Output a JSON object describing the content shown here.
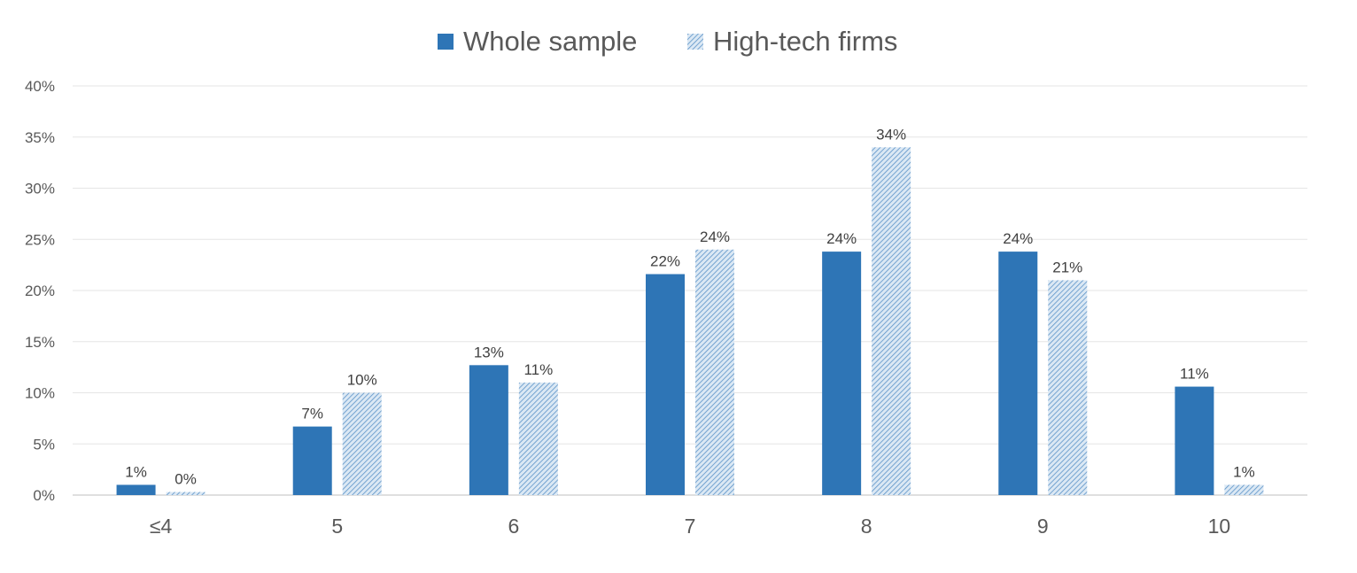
{
  "chart_data": {
    "type": "bar",
    "categories": [
      "≤4",
      "5",
      "6",
      "7",
      "8",
      "9",
      "10"
    ],
    "series": [
      {
        "name": "Whole sample",
        "values": [
          1.0,
          6.7,
          12.7,
          21.6,
          23.8,
          23.8,
          10.6
        ],
        "labels": [
          "1%",
          "7%",
          "13%",
          "22%",
          "24%",
          "24%",
          "11%"
        ],
        "color": "#2E75B6",
        "fill": "solid"
      },
      {
        "name": "High-tech firms",
        "values": [
          0.3,
          10.0,
          11.0,
          24.0,
          34.0,
          21.0,
          1.0
        ],
        "labels": [
          "0%",
          "10%",
          "11%",
          "24%",
          "34%",
          "21%",
          "1%"
        ],
        "color": "#2E75B6",
        "fill": "hatched"
      }
    ],
    "ylim": [
      0,
      40
    ],
    "yticks": [
      0,
      5,
      10,
      15,
      20,
      25,
      30,
      35,
      40
    ],
    "ytick_labels": [
      "0%",
      "5%",
      "10%",
      "15%",
      "20%",
      "25%",
      "30%",
      "35%",
      "40%"
    ],
    "grid": true,
    "legend": "top-center",
    "title": "",
    "xlabel": "",
    "ylabel": ""
  }
}
